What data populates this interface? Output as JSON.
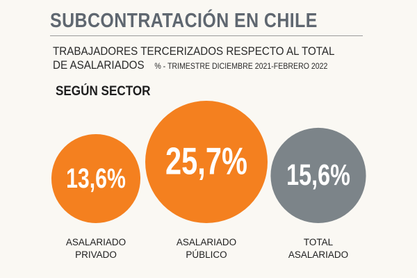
{
  "header": {
    "title": "SUBCONTRATACIÓN EN CHILE",
    "subtitle_line1": "TRABAJADORES TERCERIZADOS RESPECTO AL TOTAL",
    "subtitle_line2": "DE ASALARIADOS",
    "subtitle_unit": "% - TRIMESTRE DICIEMBRE 2021-FEBRERO 2022",
    "section": "SEGÚN SECTOR"
  },
  "chart_data": {
    "type": "bubble",
    "categories": [
      "ASALARIADO PRIVADO",
      "ASALARIADO PÚBLICO",
      "TOTAL ASALARIADO"
    ],
    "category_lines": [
      [
        "ASALARIADO",
        "PRIVADO"
      ],
      [
        "ASALARIADO",
        "PÚBLICO"
      ],
      [
        "TOTAL",
        "ASALARIADO"
      ]
    ],
    "values": [
      13.6,
      25.7,
      15.6
    ],
    "value_labels": [
      "13,6%",
      "25,7%",
      "15,6%"
    ],
    "colors": [
      "#f4801f",
      "#f4801f",
      "#7c8489"
    ]
  }
}
